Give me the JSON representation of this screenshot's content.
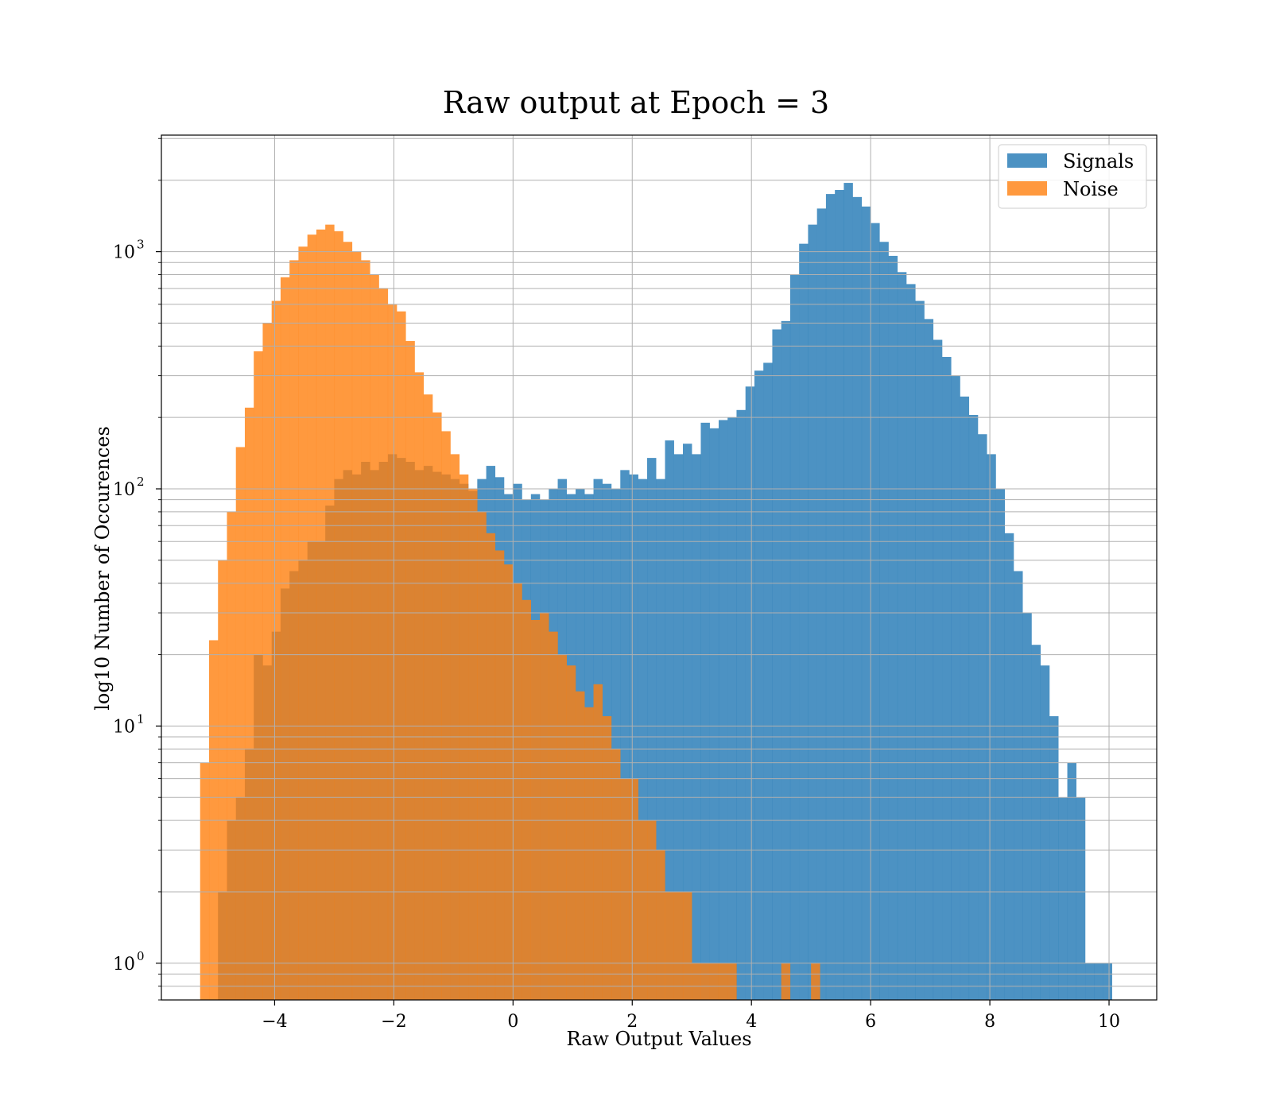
{
  "chart_data": {
    "type": "histogram",
    "title": "Raw output at Epoch = 3",
    "xlabel": "Raw Output Values",
    "ylabel": "log10 Number of Occurences",
    "yscale": "log",
    "xlim": [
      -5.9,
      10.8
    ],
    "ylim": [
      0.7,
      3100
    ],
    "grid": true,
    "legend_position": "top-right",
    "x_ticks": [
      "−4",
      "−2",
      "0",
      "2",
      "4",
      "6",
      "8",
      "10"
    ],
    "y_ticks": [
      {
        "base": "10",
        "exp": "0"
      },
      {
        "base": "10",
        "exp": "1"
      },
      {
        "base": "10",
        "exp": "2"
      },
      {
        "base": "10",
        "exp": "3"
      }
    ],
    "series": [
      {
        "name": "Signals",
        "color": "#1f77b4",
        "alpha": 0.8,
        "bins": [
          [
            -4.95,
            2
          ],
          [
            -4.8,
            4
          ],
          [
            -4.65,
            5
          ],
          [
            -4.5,
            8
          ],
          [
            -4.35,
            20
          ],
          [
            -4.2,
            18
          ],
          [
            -4.05,
            25
          ],
          [
            -3.9,
            38
          ],
          [
            -3.75,
            45
          ],
          [
            -3.6,
            50
          ],
          [
            -3.45,
            60
          ],
          [
            -3.3,
            60
          ],
          [
            -3.15,
            85
          ],
          [
            -3.0,
            110
          ],
          [
            -2.85,
            120
          ],
          [
            -2.7,
            115
          ],
          [
            -2.55,
            130
          ],
          [
            -2.4,
            120
          ],
          [
            -2.25,
            130
          ],
          [
            -2.1,
            140
          ],
          [
            -1.95,
            135
          ],
          [
            -1.8,
            130
          ],
          [
            -1.65,
            120
          ],
          [
            -1.5,
            125
          ],
          [
            -1.35,
            118
          ],
          [
            -1.2,
            115
          ],
          [
            -1.05,
            110
          ],
          [
            -0.9,
            105
          ],
          [
            -0.75,
            98
          ],
          [
            -0.6,
            110
          ],
          [
            -0.45,
            125
          ],
          [
            -0.3,
            112
          ],
          [
            -0.15,
            95
          ],
          [
            0.0,
            105
          ],
          [
            0.15,
            90
          ],
          [
            0.3,
            95
          ],
          [
            0.45,
            90
          ],
          [
            0.6,
            100
          ],
          [
            0.75,
            110
          ],
          [
            0.9,
            95
          ],
          [
            1.05,
            100
          ],
          [
            1.2,
            95
          ],
          [
            1.35,
            110
          ],
          [
            1.5,
            105
          ],
          [
            1.65,
            100
          ],
          [
            1.8,
            120
          ],
          [
            1.95,
            115
          ],
          [
            2.1,
            110
          ],
          [
            2.25,
            135
          ],
          [
            2.4,
            110
          ],
          [
            2.55,
            160
          ],
          [
            2.7,
            140
          ],
          [
            2.85,
            155
          ],
          [
            3.0,
            140
          ],
          [
            3.15,
            190
          ],
          [
            3.3,
            180
          ],
          [
            3.45,
            195
          ],
          [
            3.6,
            200
          ],
          [
            3.75,
            215
          ],
          [
            3.9,
            270
          ],
          [
            4.05,
            315
          ],
          [
            4.2,
            340
          ],
          [
            4.35,
            470
          ],
          [
            4.5,
            510
          ],
          [
            4.65,
            800
          ],
          [
            4.8,
            1080
          ],
          [
            4.95,
            1300
          ],
          [
            5.1,
            1520
          ],
          [
            5.25,
            1750
          ],
          [
            5.4,
            1820
          ],
          [
            5.55,
            1950
          ],
          [
            5.7,
            1700
          ],
          [
            5.85,
            1550
          ],
          [
            6.0,
            1320
          ],
          [
            6.15,
            1100
          ],
          [
            6.3,
            960
          ],
          [
            6.45,
            820
          ],
          [
            6.6,
            730
          ],
          [
            6.75,
            620
          ],
          [
            6.9,
            520
          ],
          [
            7.05,
            425
          ],
          [
            7.2,
            360
          ],
          [
            7.35,
            300
          ],
          [
            7.5,
            245
          ],
          [
            7.65,
            205
          ],
          [
            7.8,
            170
          ],
          [
            7.95,
            140
          ],
          [
            8.1,
            100
          ],
          [
            8.25,
            65
          ],
          [
            8.4,
            45
          ],
          [
            8.55,
            30
          ],
          [
            8.7,
            22
          ],
          [
            8.85,
            18
          ],
          [
            9.0,
            11
          ],
          [
            9.15,
            5
          ],
          [
            9.3,
            7
          ],
          [
            9.45,
            5
          ],
          [
            9.6,
            1
          ],
          [
            9.75,
            1
          ],
          [
            9.9,
            1
          ]
        ]
      },
      {
        "name": "Noise",
        "color": "#ff7f0e",
        "alpha": 0.8,
        "bins": [
          [
            -5.25,
            7
          ],
          [
            -5.1,
            23
          ],
          [
            -4.95,
            50
          ],
          [
            -4.8,
            80
          ],
          [
            -4.65,
            150
          ],
          [
            -4.5,
            220
          ],
          [
            -4.35,
            380
          ],
          [
            -4.2,
            500
          ],
          [
            -4.05,
            620
          ],
          [
            -3.9,
            780
          ],
          [
            -3.75,
            920
          ],
          [
            -3.6,
            1050
          ],
          [
            -3.45,
            1180
          ],
          [
            -3.3,
            1240
          ],
          [
            -3.15,
            1300
          ],
          [
            -3.0,
            1220
          ],
          [
            -2.85,
            1100
          ],
          [
            -2.7,
            1000
          ],
          [
            -2.55,
            920
          ],
          [
            -2.4,
            800
          ],
          [
            -2.25,
            700
          ],
          [
            -2.1,
            600
          ],
          [
            -1.95,
            560
          ],
          [
            -1.8,
            420
          ],
          [
            -1.65,
            310
          ],
          [
            -1.5,
            250
          ],
          [
            -1.35,
            210
          ],
          [
            -1.2,
            175
          ],
          [
            -1.05,
            140
          ],
          [
            -0.9,
            115
          ],
          [
            -0.75,
            100
          ],
          [
            -0.6,
            80
          ],
          [
            -0.45,
            65
          ],
          [
            -0.3,
            55
          ],
          [
            -0.15,
            48
          ],
          [
            0.0,
            40
          ],
          [
            0.15,
            34
          ],
          [
            0.3,
            28
          ],
          [
            0.45,
            30
          ],
          [
            0.6,
            25
          ],
          [
            0.75,
            20
          ],
          [
            0.9,
            18
          ],
          [
            1.05,
            14
          ],
          [
            1.2,
            12
          ],
          [
            1.35,
            15
          ],
          [
            1.5,
            11
          ],
          [
            1.65,
            8
          ],
          [
            1.8,
            6
          ],
          [
            1.95,
            6
          ],
          [
            2.1,
            4
          ],
          [
            2.25,
            4
          ],
          [
            2.4,
            3
          ],
          [
            2.55,
            2
          ],
          [
            2.7,
            2
          ],
          [
            2.85,
            2
          ],
          [
            3.0,
            1
          ],
          [
            3.15,
            1
          ],
          [
            3.3,
            1
          ],
          [
            3.45,
            1
          ],
          [
            3.6,
            1
          ],
          [
            4.5,
            1
          ],
          [
            5.0,
            1
          ]
        ]
      }
    ]
  }
}
